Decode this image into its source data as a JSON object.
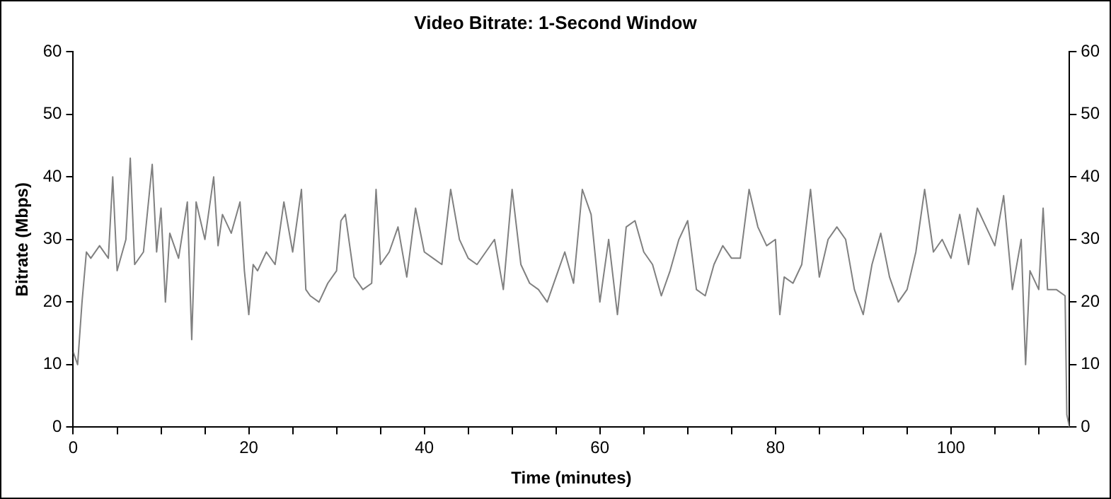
{
  "chart_data": {
    "type": "line",
    "title": "Video Bitrate: 1-Second Window",
    "xlabel": "Time (minutes)",
    "ylabel": "Bitrate (Mbps)",
    "x": [
      0,
      0.5,
      1,
      1.5,
      2,
      3,
      4,
      4.5,
      5,
      6,
      6.5,
      7,
      8,
      9,
      9.5,
      10,
      10.5,
      11,
      12,
      13,
      13.5,
      14,
      15,
      16,
      16.5,
      17,
      18,
      19,
      19.5,
      20,
      20.5,
      21,
      22,
      23,
      24,
      25,
      26,
      26.5,
      27,
      28,
      29,
      30,
      30.5,
      31,
      32,
      33,
      34,
      34.5,
      35,
      36,
      37,
      38,
      39,
      40,
      41,
      42,
      43,
      44,
      45,
      46,
      47,
      48,
      49,
      50,
      51,
      52,
      53,
      54,
      55,
      56,
      57,
      58,
      59,
      60,
      61,
      62,
      63,
      64,
      65,
      66,
      67,
      68,
      69,
      70,
      71,
      72,
      73,
      74,
      75,
      76,
      77,
      78,
      79,
      80,
      80.5,
      81,
      82,
      83,
      84,
      85,
      86,
      87,
      88,
      89,
      90,
      91,
      92,
      93,
      94,
      95,
      96,
      97,
      98,
      99,
      100,
      101,
      102,
      103,
      104,
      105,
      106,
      107,
      108,
      108.5,
      109,
      110,
      110.5,
      111,
      112,
      113,
      113.2,
      113.5
    ],
    "series": [
      {
        "color": "#808080",
        "values": [
          12,
          10,
          20,
          28,
          27,
          29,
          27,
          40,
          25,
          30,
          43,
          26,
          28,
          42,
          28,
          35,
          20,
          31,
          27,
          36,
          14,
          36,
          30,
          40,
          29,
          34,
          31,
          36,
          25,
          18,
          26,
          25,
          28,
          26,
          36,
          28,
          38,
          22,
          21,
          20,
          23,
          25,
          33,
          34,
          24,
          22,
          23,
          38,
          26,
          28,
          32,
          24,
          35,
          28,
          27,
          26,
          38,
          30,
          27,
          26,
          28,
          30,
          22,
          38,
          26,
          23,
          22,
          20,
          24,
          28,
          23,
          38,
          34,
          20,
          30,
          18,
          32,
          33,
          28,
          26,
          21,
          25,
          30,
          33,
          22,
          21,
          26,
          29,
          27,
          27,
          38,
          32,
          29,
          30,
          18,
          24,
          23,
          26,
          38,
          24,
          30,
          32,
          30,
          22,
          18,
          26,
          31,
          24,
          20,
          22,
          28,
          38,
          28,
          30,
          27,
          34,
          26,
          35,
          32,
          29,
          37,
          22,
          30,
          10,
          25,
          22,
          35,
          22,
          22,
          21,
          2,
          0
        ]
      }
    ],
    "xlim": [
      0,
      113.5
    ],
    "xticks": [
      0,
      {
        "value": 5,
        "label": null
      },
      {
        "value": 10,
        "label": null
      },
      {
        "value": 15,
        "label": null
      },
      20,
      {
        "value": 25,
        "label": null
      },
      {
        "value": 30,
        "label": null
      },
      {
        "value": 35,
        "label": null
      },
      40,
      {
        "value": 45,
        "label": null
      },
      {
        "value": 50,
        "label": null
      },
      {
        "value": 55,
        "label": null
      },
      60,
      {
        "value": 65,
        "label": null
      },
      {
        "value": 70,
        "label": null
      },
      {
        "value": 75,
        "label": null
      },
      80,
      {
        "value": 85,
        "label": null
      },
      {
        "value": 90,
        "label": null
      },
      {
        "value": 95,
        "label": null
      },
      100,
      {
        "value": 105,
        "label": null
      },
      {
        "value": 110,
        "label": null
      }
    ],
    "ylim": [
      0,
      60
    ],
    "yticks": [
      0,
      10,
      20,
      30,
      40,
      50,
      60
    ],
    "y2lim": [
      0,
      60
    ],
    "y2ticks": [
      0,
      10,
      20,
      30,
      40,
      50,
      60
    ],
    "grid": false,
    "legend": false,
    "marker": "none",
    "line_style": "solid"
  }
}
